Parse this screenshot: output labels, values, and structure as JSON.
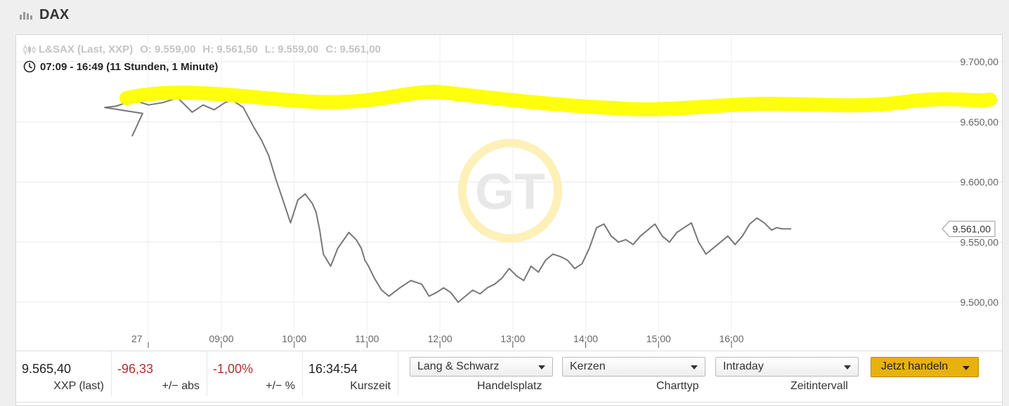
{
  "header": {
    "title": "DAX",
    "icon": "bar-chart-icon"
  },
  "chart_header": {
    "source": "L&SAX (Last, XXP)",
    "open": "O: 9.559,00",
    "high": "H: 9.561,50",
    "low": "L: 9.559,00",
    "close": "C: 9.561,00",
    "timerange": "07:09 - 16:49 (11 Stunden, 1 Minute)"
  },
  "chart_data": {
    "type": "line",
    "x_ticks": [
      "27",
      "09:00",
      "10:00",
      "11:00",
      "12:00",
      "13:00",
      "14:00",
      "15:00",
      "16:00"
    ],
    "y_ticks": [
      "9.700,00",
      "9.650,00",
      "9.600,00",
      "9.550,00",
      "9.500,00"
    ],
    "ylim": [
      9475,
      9720
    ],
    "xlim": [
      7.15,
      16.82
    ],
    "last_value": 9561,
    "last_label": "9.561,00",
    "series": [
      {
        "x": [
          7.15,
          7.25,
          7.4,
          7.55,
          7.7,
          7.85,
          8.0,
          8.2,
          8.4,
          8.6,
          8.75,
          8.9,
          9.05,
          9.15,
          9.3,
          9.45,
          9.55,
          9.65,
          9.75,
          9.85,
          9.95,
          10.05,
          10.15,
          10.25,
          10.3,
          10.35,
          10.4,
          10.5,
          10.6,
          10.75,
          10.85,
          10.92,
          10.97,
          11.02,
          11.1,
          11.2,
          11.3,
          11.45,
          11.6,
          11.75,
          11.85,
          11.95,
          12.05,
          12.15,
          12.25,
          12.35,
          12.45,
          12.55,
          12.65,
          12.75,
          12.85,
          12.95,
          13.05,
          13.15,
          13.25,
          13.35,
          13.45,
          13.55,
          13.65,
          13.75,
          13.85,
          13.95,
          14.05,
          14.15,
          14.25,
          14.35,
          14.45,
          14.55,
          14.65,
          14.75,
          14.85,
          14.95,
          15.05,
          15.15,
          15.25,
          15.35,
          15.45,
          15.55,
          15.65,
          15.75,
          15.85,
          15.95,
          16.05,
          16.15,
          16.25,
          16.35,
          16.45,
          16.55,
          16.62,
          16.7,
          16.78,
          16.82
        ],
        "values": [
          9638,
          9657,
          9662,
          9663,
          9666,
          9667,
          9664,
          9666,
          9670,
          9658,
          9664,
          9660,
          9666,
          9668,
          9662,
          9645,
          9635,
          9622,
          9602,
          9584,
          9566,
          9585,
          9590,
          9582,
          9575,
          9560,
          9540,
          9530,
          9545,
          9558,
          9552,
          9545,
          9535,
          9530,
          9520,
          9510,
          9505,
          9512,
          9518,
          9515,
          9505,
          9508,
          9512,
          9508,
          9500,
          9505,
          9510,
          9507,
          9512,
          9515,
          9520,
          9528,
          9522,
          9518,
          9530,
          9525,
          9535,
          9540,
          9538,
          9535,
          9528,
          9532,
          9545,
          9562,
          9565,
          9555,
          9550,
          9552,
          9548,
          9555,
          9560,
          9565,
          9555,
          9550,
          9558,
          9562,
          9566,
          9550,
          9540,
          9545,
          9550,
          9555,
          9548,
          9555,
          9565,
          9570,
          9566,
          9560,
          9562,
          9561,
          9561,
          9561
        ]
      }
    ]
  },
  "highlight_color": "#ffff00",
  "line_color": "#777777",
  "watermark": "GT",
  "footer": {
    "last": {
      "value": "9.565,40",
      "label": "XXP (last)"
    },
    "abs": {
      "value": "-96,33",
      "label": "+/− abs"
    },
    "pct": {
      "value": "-1,00%",
      "label": "+/− %"
    },
    "time": {
      "value": "16:34:54",
      "label": "Kurszeit"
    },
    "handelsplatz": {
      "value": "Lang & Schwarz",
      "label": "Handelsplatz"
    },
    "charttyp": {
      "value": "Kerzen",
      "label": "Charttyp"
    },
    "zeitintervall": {
      "value": "Intraday",
      "label": "Zeitintervall"
    },
    "trade_button": "Jetzt handeln"
  }
}
